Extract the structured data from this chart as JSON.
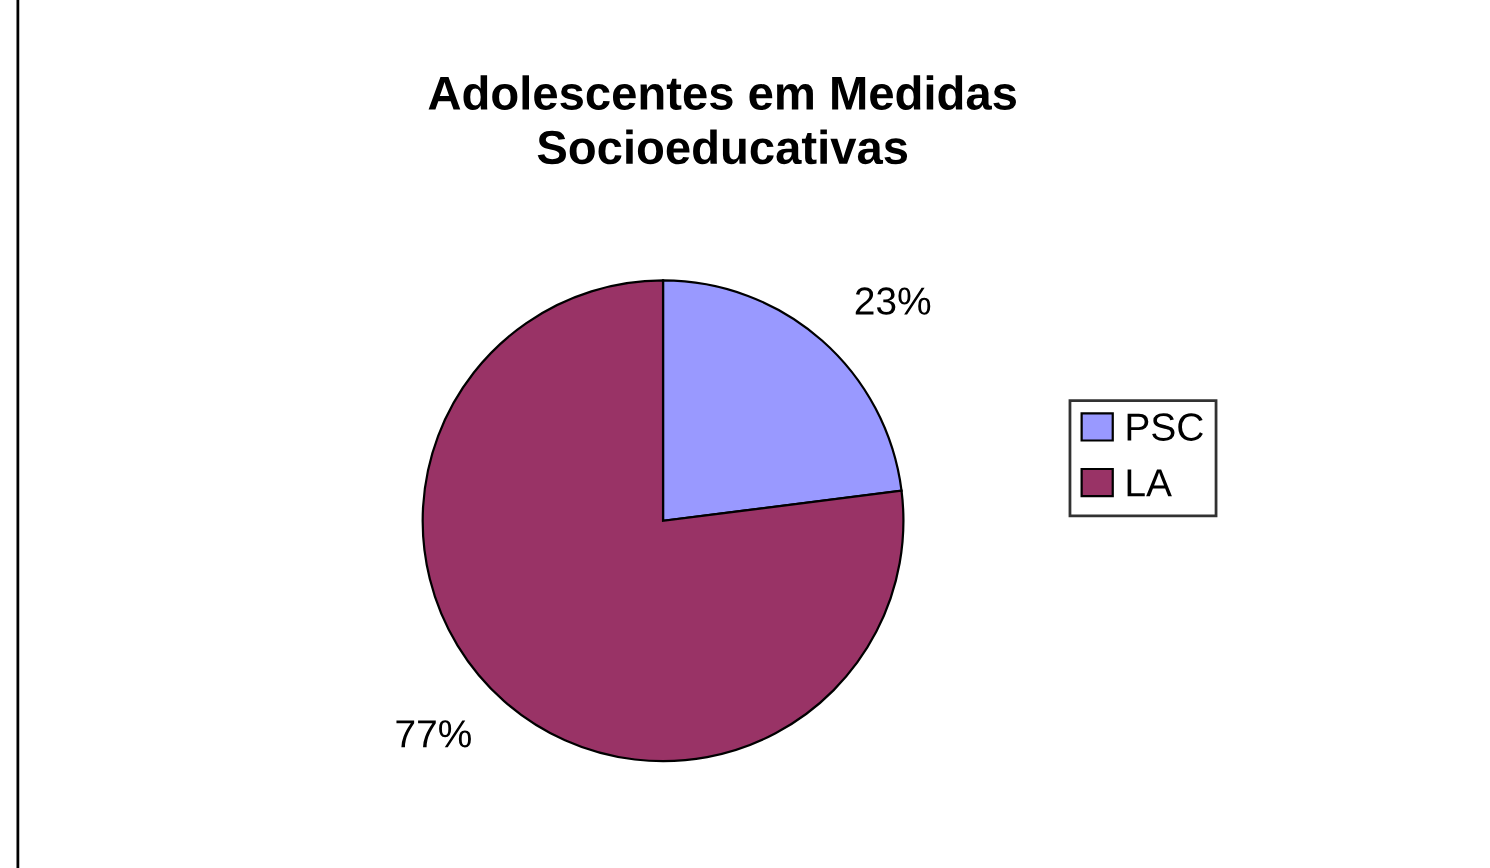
{
  "chart_data": {
    "type": "pie",
    "title": "Adolescentes em Medidas\nSocioeducativas",
    "categories": [
      "PSC",
      "LA"
    ],
    "values": [
      23,
      77
    ],
    "colors": [
      "#9999ff",
      "#993366"
    ],
    "value_labels": [
      "23%",
      "77%"
    ],
    "legend": "right"
  }
}
